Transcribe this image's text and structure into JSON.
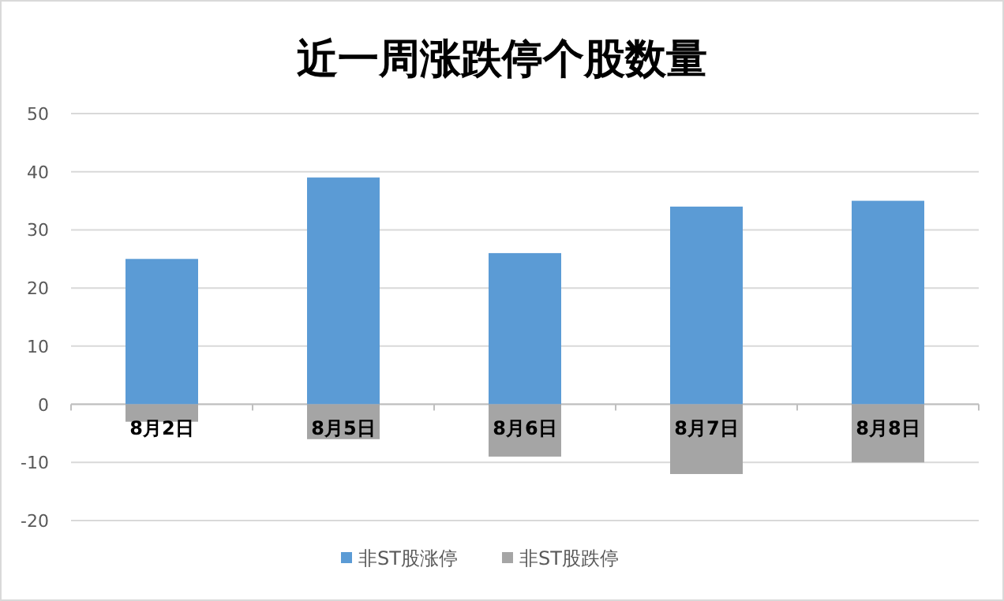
{
  "chart_data": {
    "type": "bar",
    "title": "近一周涨跌停个股数量",
    "categories": [
      "8月2日",
      "8月5日",
      "8月6日",
      "8月7日",
      "8月8日"
    ],
    "series": [
      {
        "name": "非ST股涨停",
        "color": "#5b9bd5",
        "values": [
          25,
          39,
          26,
          34,
          35
        ]
      },
      {
        "name": "非ST股跌停",
        "color": "#a5a5a5",
        "values": [
          -3,
          -6,
          -9,
          -12,
          -10
        ]
      }
    ],
    "ylim": [
      -20,
      50
    ],
    "yticks": [
      -20,
      -10,
      0,
      10,
      20,
      30,
      40,
      50
    ],
    "grid": "y",
    "legend": "bottom",
    "stacked": true
  }
}
